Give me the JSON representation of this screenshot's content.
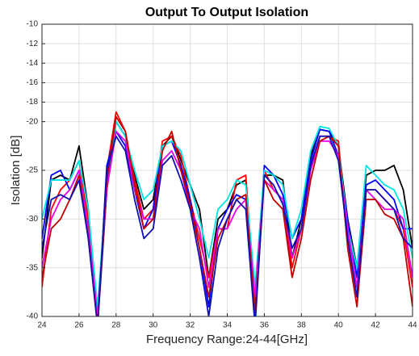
{
  "chart_data": {
    "type": "line",
    "title": "Output To Output Isolation",
    "x_label": "Frequency Range:24-44[GHz]",
    "y_label": "Isolation [dB]",
    "x": [
      24,
      24.5,
      25,
      25.5,
      26,
      26.5,
      27,
      27.5,
      28,
      28.5,
      29,
      29.5,
      30,
      30.5,
      31,
      31.5,
      32,
      32.5,
      33,
      33.5,
      34,
      34.5,
      35,
      35.5,
      36,
      36.5,
      37,
      37.5,
      38,
      38.5,
      39,
      39.5,
      40,
      40.5,
      41,
      41.5,
      42,
      42.5,
      43,
      43.5,
      44
    ],
    "series": [
      {
        "color": "#000000",
        "values": [
          -34,
          -26,
          -25.5,
          -26,
          -22.5,
          -29,
          -41,
          -27,
          -20,
          -21.5,
          -25.5,
          -29,
          -28,
          -22.5,
          -21.5,
          -24,
          -26.5,
          -29,
          -36,
          -30,
          -29,
          -26.5,
          -26,
          -39,
          -25.5,
          -25.5,
          -26,
          -34,
          -30,
          -23.5,
          -20.8,
          -21,
          -22.5,
          -30,
          -35,
          -25.5,
          -25,
          -25,
          -24.5,
          -27,
          -33
        ]
      },
      {
        "color": "#ff0000",
        "values": [
          -37,
          -29,
          -27,
          -26,
          -24,
          -30,
          -41,
          -25,
          -19,
          -21,
          -26,
          -30,
          -29,
          -22,
          -21.5,
          -23.5,
          -28,
          -32,
          -36,
          -31,
          -31,
          -26,
          -25.5,
          -39,
          -25,
          -27,
          -28,
          -35,
          -31,
          -25,
          -21.5,
          -21.5,
          -22,
          -32,
          -38,
          -27,
          -27,
          -28,
          -29,
          -31,
          -37
        ]
      },
      {
        "color": "#0000ff",
        "values": [
          -32,
          -25.5,
          -25,
          -27,
          -25,
          -31,
          -41,
          -24.5,
          -21,
          -22.5,
          -27,
          -31,
          -29,
          -22.5,
          -22,
          -24.5,
          -28,
          -33,
          -39,
          -31,
          -29,
          -27.5,
          -28,
          -40,
          -24.5,
          -25.5,
          -27.5,
          -32,
          -30,
          -24,
          -20.8,
          -21,
          -23.5,
          -30,
          -36,
          -26.5,
          -26,
          -27,
          -28,
          -31,
          -31
        ]
      },
      {
        "color": "#00e5e5",
        "values": [
          -30,
          -26,
          -26,
          -26,
          -24,
          -29,
          -39,
          -26,
          -20,
          -21.5,
          -25,
          -28,
          -27,
          -22.5,
          -22,
          -23,
          -26.5,
          -30,
          -34,
          -29,
          -28,
          -26,
          -26.5,
          -37,
          -25,
          -25.5,
          -26.5,
          -32,
          -29,
          -23,
          -20.5,
          -20.7,
          -22.5,
          -31,
          -35,
          -24.5,
          -25.5,
          -26.5,
          -27,
          -29,
          -34
        ]
      },
      {
        "color": "#e600e6",
        "values": [
          -35,
          -30,
          -28,
          -27,
          -25,
          -31,
          -40,
          -27,
          -21,
          -22,
          -27,
          -30,
          -30,
          -24,
          -23,
          -25,
          -29,
          -31,
          -37,
          -31,
          -31,
          -29,
          -28,
          -38,
          -26,
          -27,
          -28,
          -34,
          -31,
          -25,
          -22,
          -22,
          -23.5,
          -31,
          -37,
          -27,
          -28,
          -29,
          -29,
          -30,
          -36
        ]
      },
      {
        "color": "#c00000",
        "values": [
          -36,
          -31,
          -30,
          -28,
          -25.5,
          -32,
          -41,
          -26,
          -19.5,
          -21,
          -26.5,
          -31,
          -30,
          -23,
          -21,
          -25,
          -28.5,
          -33,
          -38,
          -32,
          -30,
          -28,
          -27.5,
          -40,
          -26,
          -28,
          -29,
          -36,
          -32,
          -26,
          -22,
          -21.5,
          -22.5,
          -33,
          -39,
          -28,
          -28,
          -29.5,
          -30,
          -32,
          -39
        ]
      },
      {
        "color": "#1010b0",
        "values": [
          -33,
          -28,
          -27.5,
          -28,
          -26,
          -32,
          -41,
          -25,
          -21.5,
          -23,
          -28,
          -32,
          -31,
          -24.5,
          -23.5,
          -26,
          -29,
          -34,
          -40,
          -33,
          -30,
          -28,
          -29,
          -41,
          -25.5,
          -26.5,
          -28.5,
          -33,
          -31,
          -24.5,
          -21.5,
          -21.5,
          -24,
          -32,
          -38,
          -27,
          -27,
          -28,
          -29,
          -32,
          -33
        ]
      }
    ],
    "xlim": [
      24,
      44
    ],
    "xticks": [
      24,
      26,
      28,
      30,
      32,
      34,
      36,
      38,
      40,
      42,
      44
    ],
    "ylim": [
      -40,
      -10
    ],
    "yticks": [
      -40,
      -35,
      -30,
      -25,
      -20,
      -18,
      -16,
      -14,
      -12,
      -10
    ],
    "grid": true
  }
}
